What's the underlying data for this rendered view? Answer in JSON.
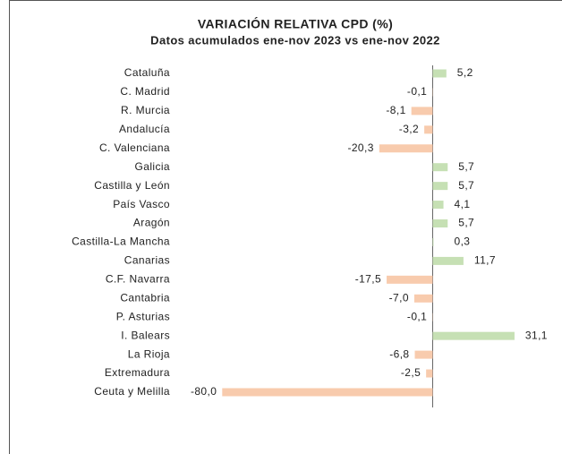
{
  "chart_data": {
    "type": "bar",
    "orientation": "horizontal",
    "title": "VARIACIÓN RELATIVA CPD (%)",
    "subtitle": "Datos acumulados ene-nov 2023 vs ene-nov 2022",
    "categories": [
      "Cataluña",
      "C. Madrid",
      "R. Murcia",
      "Andalucía",
      "C. Valenciana",
      "Galicia",
      "Castilla y León",
      "País Vasco",
      "Aragón",
      "Castilla-La Mancha",
      "Canarias",
      "C.F. Navarra",
      "Cantabria",
      "P. Asturias",
      "I. Balears",
      "La Rioja",
      "Extremadura",
      "Ceuta y Melilla"
    ],
    "values": [
      5.2,
      -0.1,
      -8.1,
      -3.2,
      -20.3,
      5.7,
      5.7,
      4.1,
      5.7,
      0.3,
      11.7,
      -17.5,
      -7.0,
      -0.1,
      31.1,
      -6.8,
      -2.5,
      -80.0
    ],
    "value_labels": [
      "5,2",
      "-0,1",
      "-8,1",
      "-3,2",
      "-20,3",
      "5,7",
      "5,7",
      "4,1",
      "5,7",
      "0,3",
      "11,7",
      "-17,5",
      "-7,0",
      "-0,1",
      "31,1",
      "-6,8",
      "-2,5",
      "-80,0"
    ],
    "positive_color": "#c6e0b4",
    "negative_color": "#f8cbad"
  }
}
